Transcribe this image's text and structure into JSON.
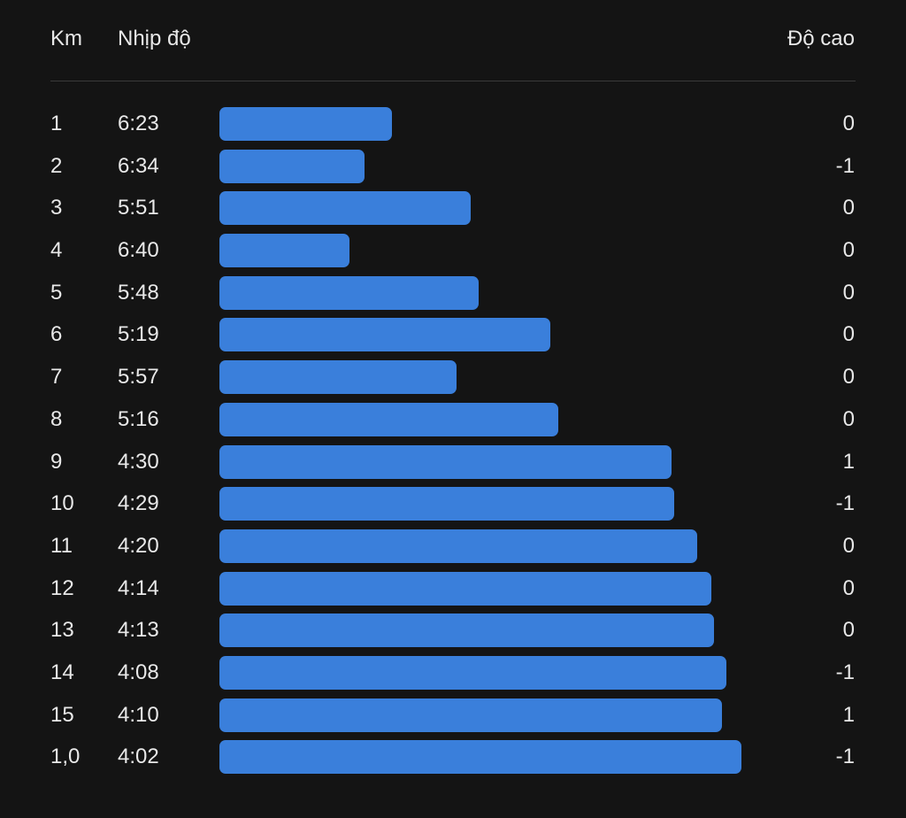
{
  "header": {
    "km_label": "Km",
    "pace_label": "Nhịp độ",
    "elevation_label": "Độ cao"
  },
  "colors": {
    "background": "#141414",
    "bar": "#3a7fdb",
    "text": "#e8e8e8",
    "divider": "#3a3a3a"
  },
  "splits": [
    {
      "km": "1",
      "pace": "6:23",
      "elevation": "0"
    },
    {
      "km": "2",
      "pace": "6:34",
      "elevation": "-1"
    },
    {
      "km": "3",
      "pace": "5:51",
      "elevation": "0"
    },
    {
      "km": "4",
      "pace": "6:40",
      "elevation": "0"
    },
    {
      "km": "5",
      "pace": "5:48",
      "elevation": "0"
    },
    {
      "km": "6",
      "pace": "5:19",
      "elevation": "0"
    },
    {
      "km": "7",
      "pace": "5:57",
      "elevation": "0"
    },
    {
      "km": "8",
      "pace": "5:16",
      "elevation": "0"
    },
    {
      "km": "9",
      "pace": "4:30",
      "elevation": "1"
    },
    {
      "km": "10",
      "pace": "4:29",
      "elevation": "-1"
    },
    {
      "km": "11",
      "pace": "4:20",
      "elevation": "0"
    },
    {
      "km": "12",
      "pace": "4:14",
      "elevation": "0"
    },
    {
      "km": "13",
      "pace": "4:13",
      "elevation": "0"
    },
    {
      "km": "14",
      "pace": "4:08",
      "elevation": "-1"
    },
    {
      "km": "15",
      "pace": "4:10",
      "elevation": "1"
    },
    {
      "km": "1,0",
      "pace": "4:02",
      "elevation": "-1"
    }
  ]
}
